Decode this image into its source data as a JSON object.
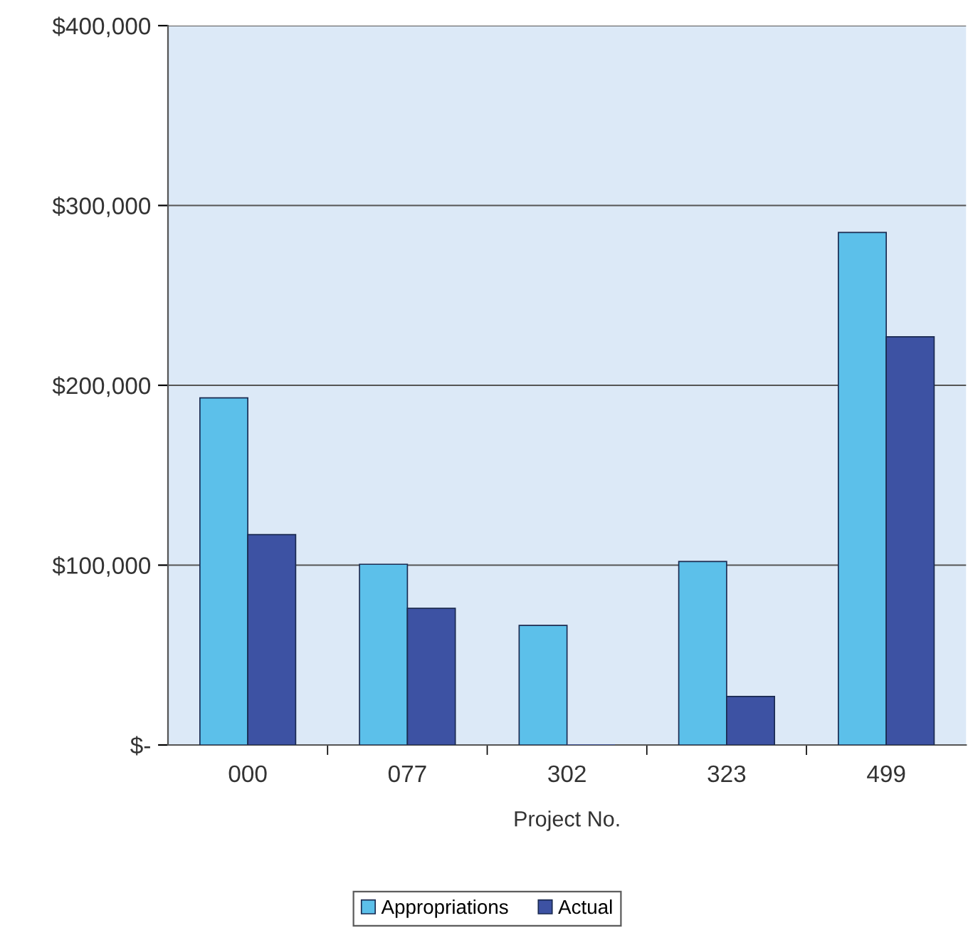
{
  "chart_data": {
    "type": "bar",
    "xlabel": "Project No.",
    "categories": [
      "000",
      "077",
      "302",
      "323",
      "499"
    ],
    "series": [
      {
        "name": "Appropriations",
        "color": "#5cc0ea",
        "values": [
          193000,
          100500,
          66500,
          102000,
          285000
        ]
      },
      {
        "name": "Actual",
        "color": "#3d52a3",
        "values": [
          117000,
          76000,
          0,
          27000,
          227000
        ]
      }
    ],
    "ylim": [
      0,
      400000
    ],
    "yticks": [
      {
        "value": 0,
        "label": "$-"
      },
      {
        "value": 100000,
        "label": "$100,000"
      },
      {
        "value": 200000,
        "label": "$200,000"
      },
      {
        "value": 300000,
        "label": "$300,000"
      },
      {
        "value": 400000,
        "label": "$400,000"
      }
    ],
    "grid": "y",
    "legend": "bottom"
  }
}
